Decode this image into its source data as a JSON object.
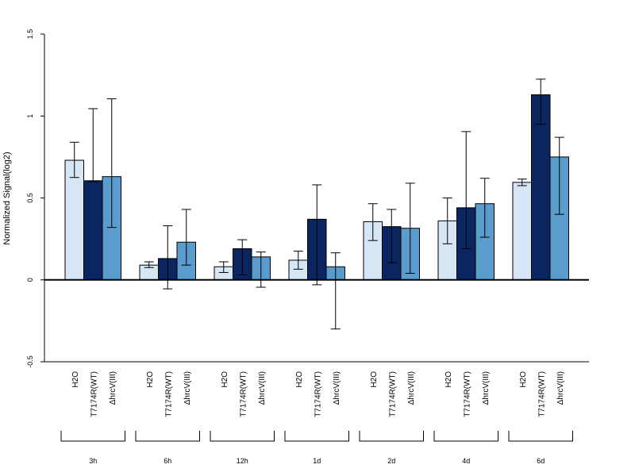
{
  "chart_data": {
    "type": "bar",
    "ylabel": "Normalized Signal(log2)",
    "ylim": [
      -0.5,
      1.5
    ],
    "yticks": [
      -0.5,
      0,
      0.5,
      1,
      1.5
    ],
    "ytick_labels": [
      "-0.5",
      "0",
      "0.5",
      "1",
      "1.5"
    ],
    "categories": [
      "3h",
      "6h",
      "12h",
      "1d",
      "2d",
      "4d",
      "6d"
    ],
    "series": [
      {
        "name": "H2O",
        "color": "#d6e6f4",
        "values": [
          0.73,
          0.09,
          0.08,
          0.12,
          0.355,
          0.36,
          0.595
        ],
        "err_low": [
          0.625,
          0.075,
          0.045,
          0.065,
          0.24,
          0.22,
          0.575
        ],
        "err_high": [
          0.84,
          0.11,
          0.11,
          0.175,
          0.465,
          0.5,
          0.615
        ]
      },
      {
        "name": "T7174R(WT)",
        "color": "#0b2560",
        "values": [
          0.605,
          0.13,
          0.19,
          0.37,
          0.325,
          0.44,
          1.13
        ],
        "err_low": [
          0.6,
          -0.055,
          0.03,
          -0.03,
          0.105,
          0.19,
          0.95
        ],
        "err_high": [
          1.045,
          0.33,
          0.245,
          0.58,
          0.43,
          0.905,
          1.225
        ]
      },
      {
        "name": "ΔhrcV(III)",
        "color": "#5a9ccc",
        "values": [
          0.63,
          0.23,
          0.14,
          0.08,
          0.315,
          0.465,
          0.75
        ],
        "err_low": [
          0.32,
          0.09,
          -0.045,
          -0.3,
          0.04,
          0.26,
          0.4
        ],
        "err_high": [
          1.105,
          0.43,
          0.17,
          0.165,
          0.59,
          0.62,
          0.87
        ]
      }
    ]
  }
}
